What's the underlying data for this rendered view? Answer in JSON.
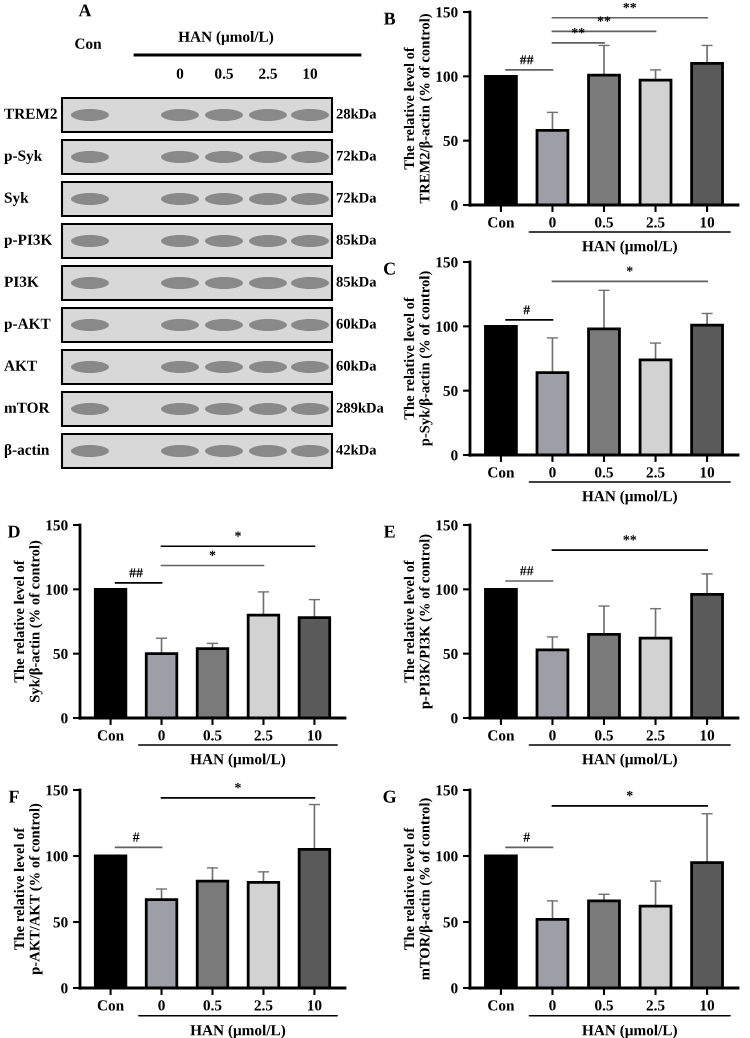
{
  "chart_data": [
    {
      "type": "other",
      "title": "A",
      "xlabel": "HAN (μmol/L)",
      "categories": [
        "Con",
        "0",
        "0.5",
        "2.5",
        "10"
      ],
      "y_categories": [
        "TREM2",
        "p-Syk",
        "Syk",
        "p-PI3K",
        "PI3K",
        "p-AKT",
        "AKT",
        "mTOR",
        "β-actin"
      ],
      "y2_categories": [
        "28kDa",
        "72kDa",
        "72kDa",
        "85kDa",
        "85kDa",
        "60kDa",
        "60kDa",
        "289kDa",
        "42kDa"
      ]
    },
    {
      "type": "bar",
      "title": "B",
      "ylabel": "The relative level of\nTREM2/β-actin (% of control)",
      "xlabel": "HAN (μmol/L)",
      "categories": [
        "Con",
        "0",
        "0.5",
        "2.5",
        "10"
      ],
      "values": [
        100,
        58,
        101,
        97,
        110
      ],
      "errors": [
        null,
        [
          58,
          72
        ],
        [
          101,
          124
        ],
        [
          97,
          105
        ],
        [
          110,
          124
        ]
      ],
      "colors": [
        "#000000",
        "#9e9ea6",
        "#7a7a7a",
        "#d2d2d2",
        "#5a5a5a"
      ],
      "ylim": [
        0,
        150
      ],
      "yticks": [
        0,
        50,
        100,
        150
      ],
      "annotations": [
        "##",
        "**",
        "**",
        "**"
      ]
    },
    {
      "type": "bar",
      "title": "C",
      "ylabel": "The relative level of\np-Syk/β-actin (% of control)",
      "xlabel": "HAN (μmol/L)",
      "categories": [
        "Con",
        "0",
        "0.5",
        "2.5",
        "10"
      ],
      "values": [
        100,
        64,
        98,
        74,
        101
      ],
      "errors": [
        null,
        [
          64,
          91
        ],
        [
          98,
          128
        ],
        [
          74,
          87
        ],
        [
          101,
          110
        ]
      ],
      "colors": [
        "#000000",
        "#9e9ea6",
        "#7a7a7a",
        "#d2d2d2",
        "#5a5a5a"
      ],
      "ylim": [
        0,
        150
      ],
      "yticks": [
        0,
        50,
        100,
        150
      ],
      "annotations": [
        "#",
        "*"
      ]
    },
    {
      "type": "bar",
      "title": "D",
      "ylabel": "The relative level of\nSyk/β-actin (% of control)",
      "xlabel": "HAN (μmol/L)",
      "categories": [
        "Con",
        "0",
        "0.5",
        "2.5",
        "10"
      ],
      "values": [
        100,
        50,
        54,
        80,
        78
      ],
      "errors": [
        null,
        [
          50,
          62
        ],
        [
          54,
          58
        ],
        [
          80,
          98
        ],
        [
          78,
          92
        ]
      ],
      "colors": [
        "#000000",
        "#9e9ea6",
        "#7a7a7a",
        "#d2d2d2",
        "#5a5a5a"
      ],
      "ylim": [
        0,
        150
      ],
      "yticks": [
        0,
        50,
        100,
        150
      ],
      "annotations": [
        "##",
        "*",
        "*"
      ]
    },
    {
      "type": "bar",
      "title": "E",
      "ylabel": "The relative level of\np-PI3K/PI3K (% of control)",
      "xlabel": "HAN (μmol/L)",
      "categories": [
        "Con",
        "0",
        "0.5",
        "2.5",
        "10"
      ],
      "values": [
        100,
        53,
        65,
        62,
        96
      ],
      "errors": [
        null,
        [
          53,
          63
        ],
        [
          65,
          87
        ],
        [
          62,
          85
        ],
        [
          96,
          112
        ]
      ],
      "colors": [
        "#000000",
        "#9e9ea6",
        "#7a7a7a",
        "#d2d2d2",
        "#5a5a5a"
      ],
      "ylim": [
        0,
        150
      ],
      "yticks": [
        0,
        50,
        100,
        150
      ],
      "annotations": [
        "##",
        "**"
      ]
    },
    {
      "type": "bar",
      "title": "F",
      "ylabel": "The relative level of\np-AKT/AKT (% of control)",
      "xlabel": "HAN (μmol/L)",
      "categories": [
        "Con",
        "0",
        "0.5",
        "2.5",
        "10"
      ],
      "values": [
        100,
        67,
        81,
        80,
        105
      ],
      "errors": [
        null,
        [
          67,
          75
        ],
        [
          81,
          91
        ],
        [
          80,
          88
        ],
        [
          105,
          139
        ]
      ],
      "colors": [
        "#000000",
        "#9e9ea6",
        "#7a7a7a",
        "#d2d2d2",
        "#5a5a5a"
      ],
      "ylim": [
        0,
        150
      ],
      "yticks": [
        0,
        50,
        100,
        150
      ],
      "annotations": [
        "#",
        "*"
      ]
    },
    {
      "type": "bar",
      "title": "G",
      "ylabel": "The relative level of\nmTOR/β-actin (% of control)",
      "xlabel": "HAN (μmol/L)",
      "categories": [
        "Con",
        "0",
        "0.5",
        "2.5",
        "10"
      ],
      "values": [
        100,
        52,
        66,
        62,
        95
      ],
      "errors": [
        null,
        [
          52,
          66
        ],
        [
          66,
          71
        ],
        [
          62,
          81
        ],
        [
          95,
          132
        ]
      ],
      "colors": [
        "#000000",
        "#9e9ea6",
        "#7a7a7a",
        "#d2d2d2",
        "#5a5a5a"
      ],
      "ylim": [
        0,
        150
      ],
      "yticks": [
        0,
        50,
        100,
        150
      ],
      "annotations": [
        "#",
        "*"
      ]
    }
  ]
}
